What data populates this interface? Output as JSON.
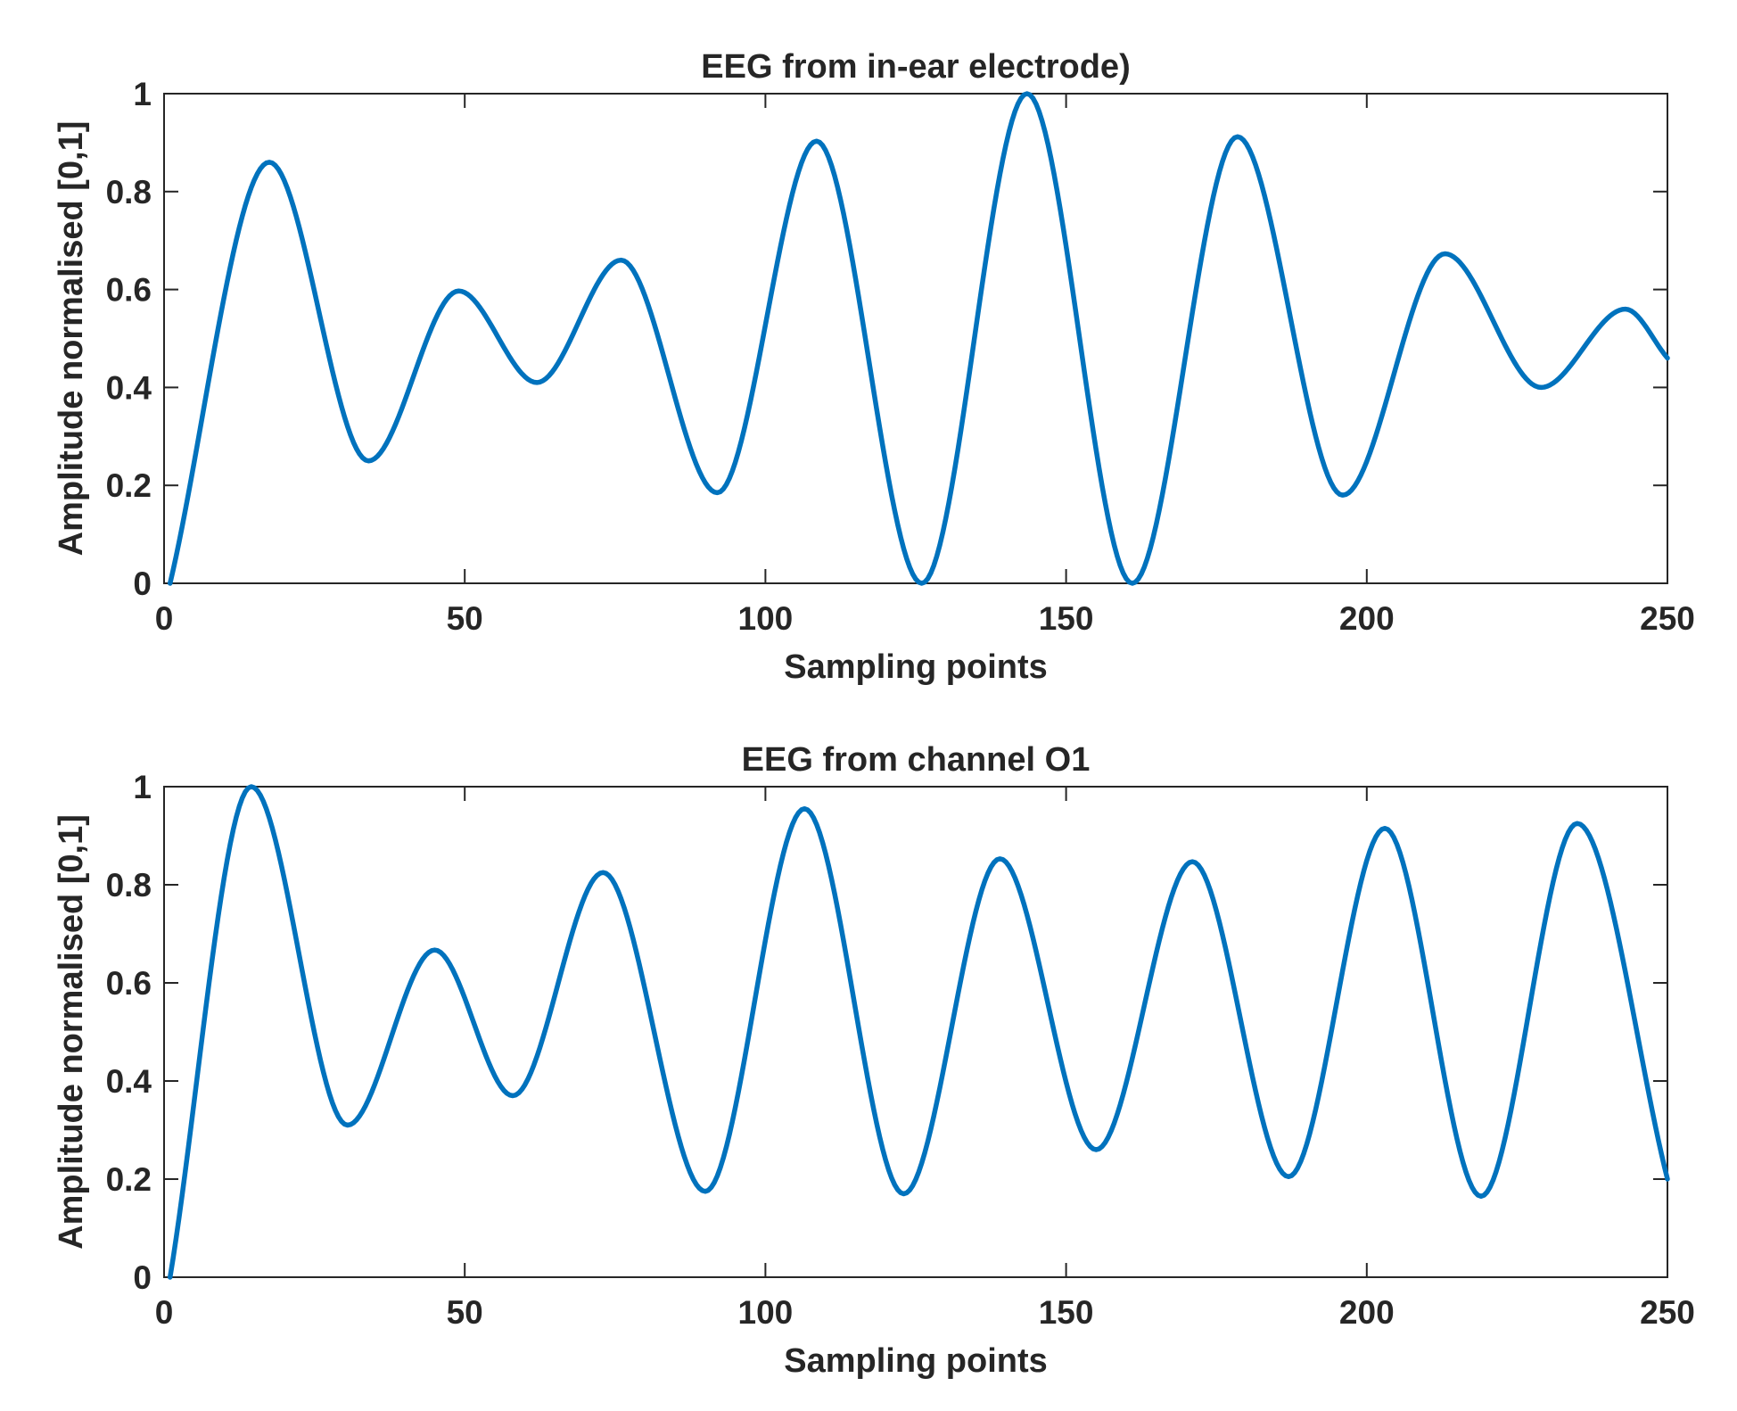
{
  "figure": {
    "line_color": "#0072BD",
    "axis_color": "#262626",
    "background": "#ffffff"
  },
  "chart_data": [
    {
      "type": "line",
      "title": "EEG from in-ear electrode)",
      "xlabel": "Sampling points",
      "ylabel": "Amplitude normalised [0,1]",
      "xlim": [
        0,
        250
      ],
      "ylim": [
        0,
        1
      ],
      "xticks": [
        0,
        50,
        100,
        150,
        200,
        250
      ],
      "xtick_labels": [
        "0",
        "50",
        "100",
        "150",
        "200",
        "250"
      ],
      "yticks": [
        0,
        0.2,
        0.4,
        0.6,
        0.8,
        1
      ],
      "ytick_labels": [
        "0",
        "0.2",
        "0.4",
        "0.6",
        "0.8",
        "1"
      ],
      "grid": false,
      "legend": null,
      "series": [
        {
          "points": [
            [
              1,
              0
            ],
            [
              17.5,
              0.86
            ],
            [
              34,
              0.25
            ],
            [
              49,
              0.597
            ],
            [
              62,
              0.41
            ],
            [
              76,
              0.66
            ],
            [
              92,
              0.185
            ],
            [
              108.5,
              0.903
            ],
            [
              126,
              0
            ],
            [
              143.5,
              1.0
            ],
            [
              161,
              0
            ],
            [
              178.5,
              0.912
            ],
            [
              196,
              0.18
            ],
            [
              213,
              0.673
            ],
            [
              229,
              0.4
            ],
            [
              243,
              0.56
            ],
            [
              250,
              0.46
            ]
          ]
        }
      ]
    },
    {
      "type": "line",
      "title": "EEG from channel O1",
      "xlabel": "Sampling points",
      "ylabel": "Amplitude normalised [0,1]",
      "xlim": [
        0,
        250
      ],
      "ylim": [
        0,
        1
      ],
      "xticks": [
        0,
        50,
        100,
        150,
        200,
        250
      ],
      "xtick_labels": [
        "0",
        "50",
        "100",
        "150",
        "200",
        "250"
      ],
      "yticks": [
        0,
        0.2,
        0.4,
        0.6,
        0.8,
        1
      ],
      "ytick_labels": [
        "0",
        "0.2",
        "0.4",
        "0.6",
        "0.8",
        "1"
      ],
      "grid": false,
      "legend": null,
      "series": [
        {
          "points": [
            [
              1,
              0
            ],
            [
              14.5,
              1.0
            ],
            [
              30.5,
              0.31
            ],
            [
              45,
              0.667
            ],
            [
              58,
              0.37
            ],
            [
              73,
              0.825
            ],
            [
              90,
              0.175
            ],
            [
              106.5,
              0.955
            ],
            [
              123,
              0.17
            ],
            [
              139,
              0.853
            ],
            [
              155,
              0.26
            ],
            [
              171,
              0.847
            ],
            [
              187,
              0.205
            ],
            [
              203,
              0.915
            ],
            [
              219,
              0.165
            ],
            [
              235,
              0.925
            ],
            [
              250,
              0.2
            ]
          ]
        }
      ]
    }
  ]
}
